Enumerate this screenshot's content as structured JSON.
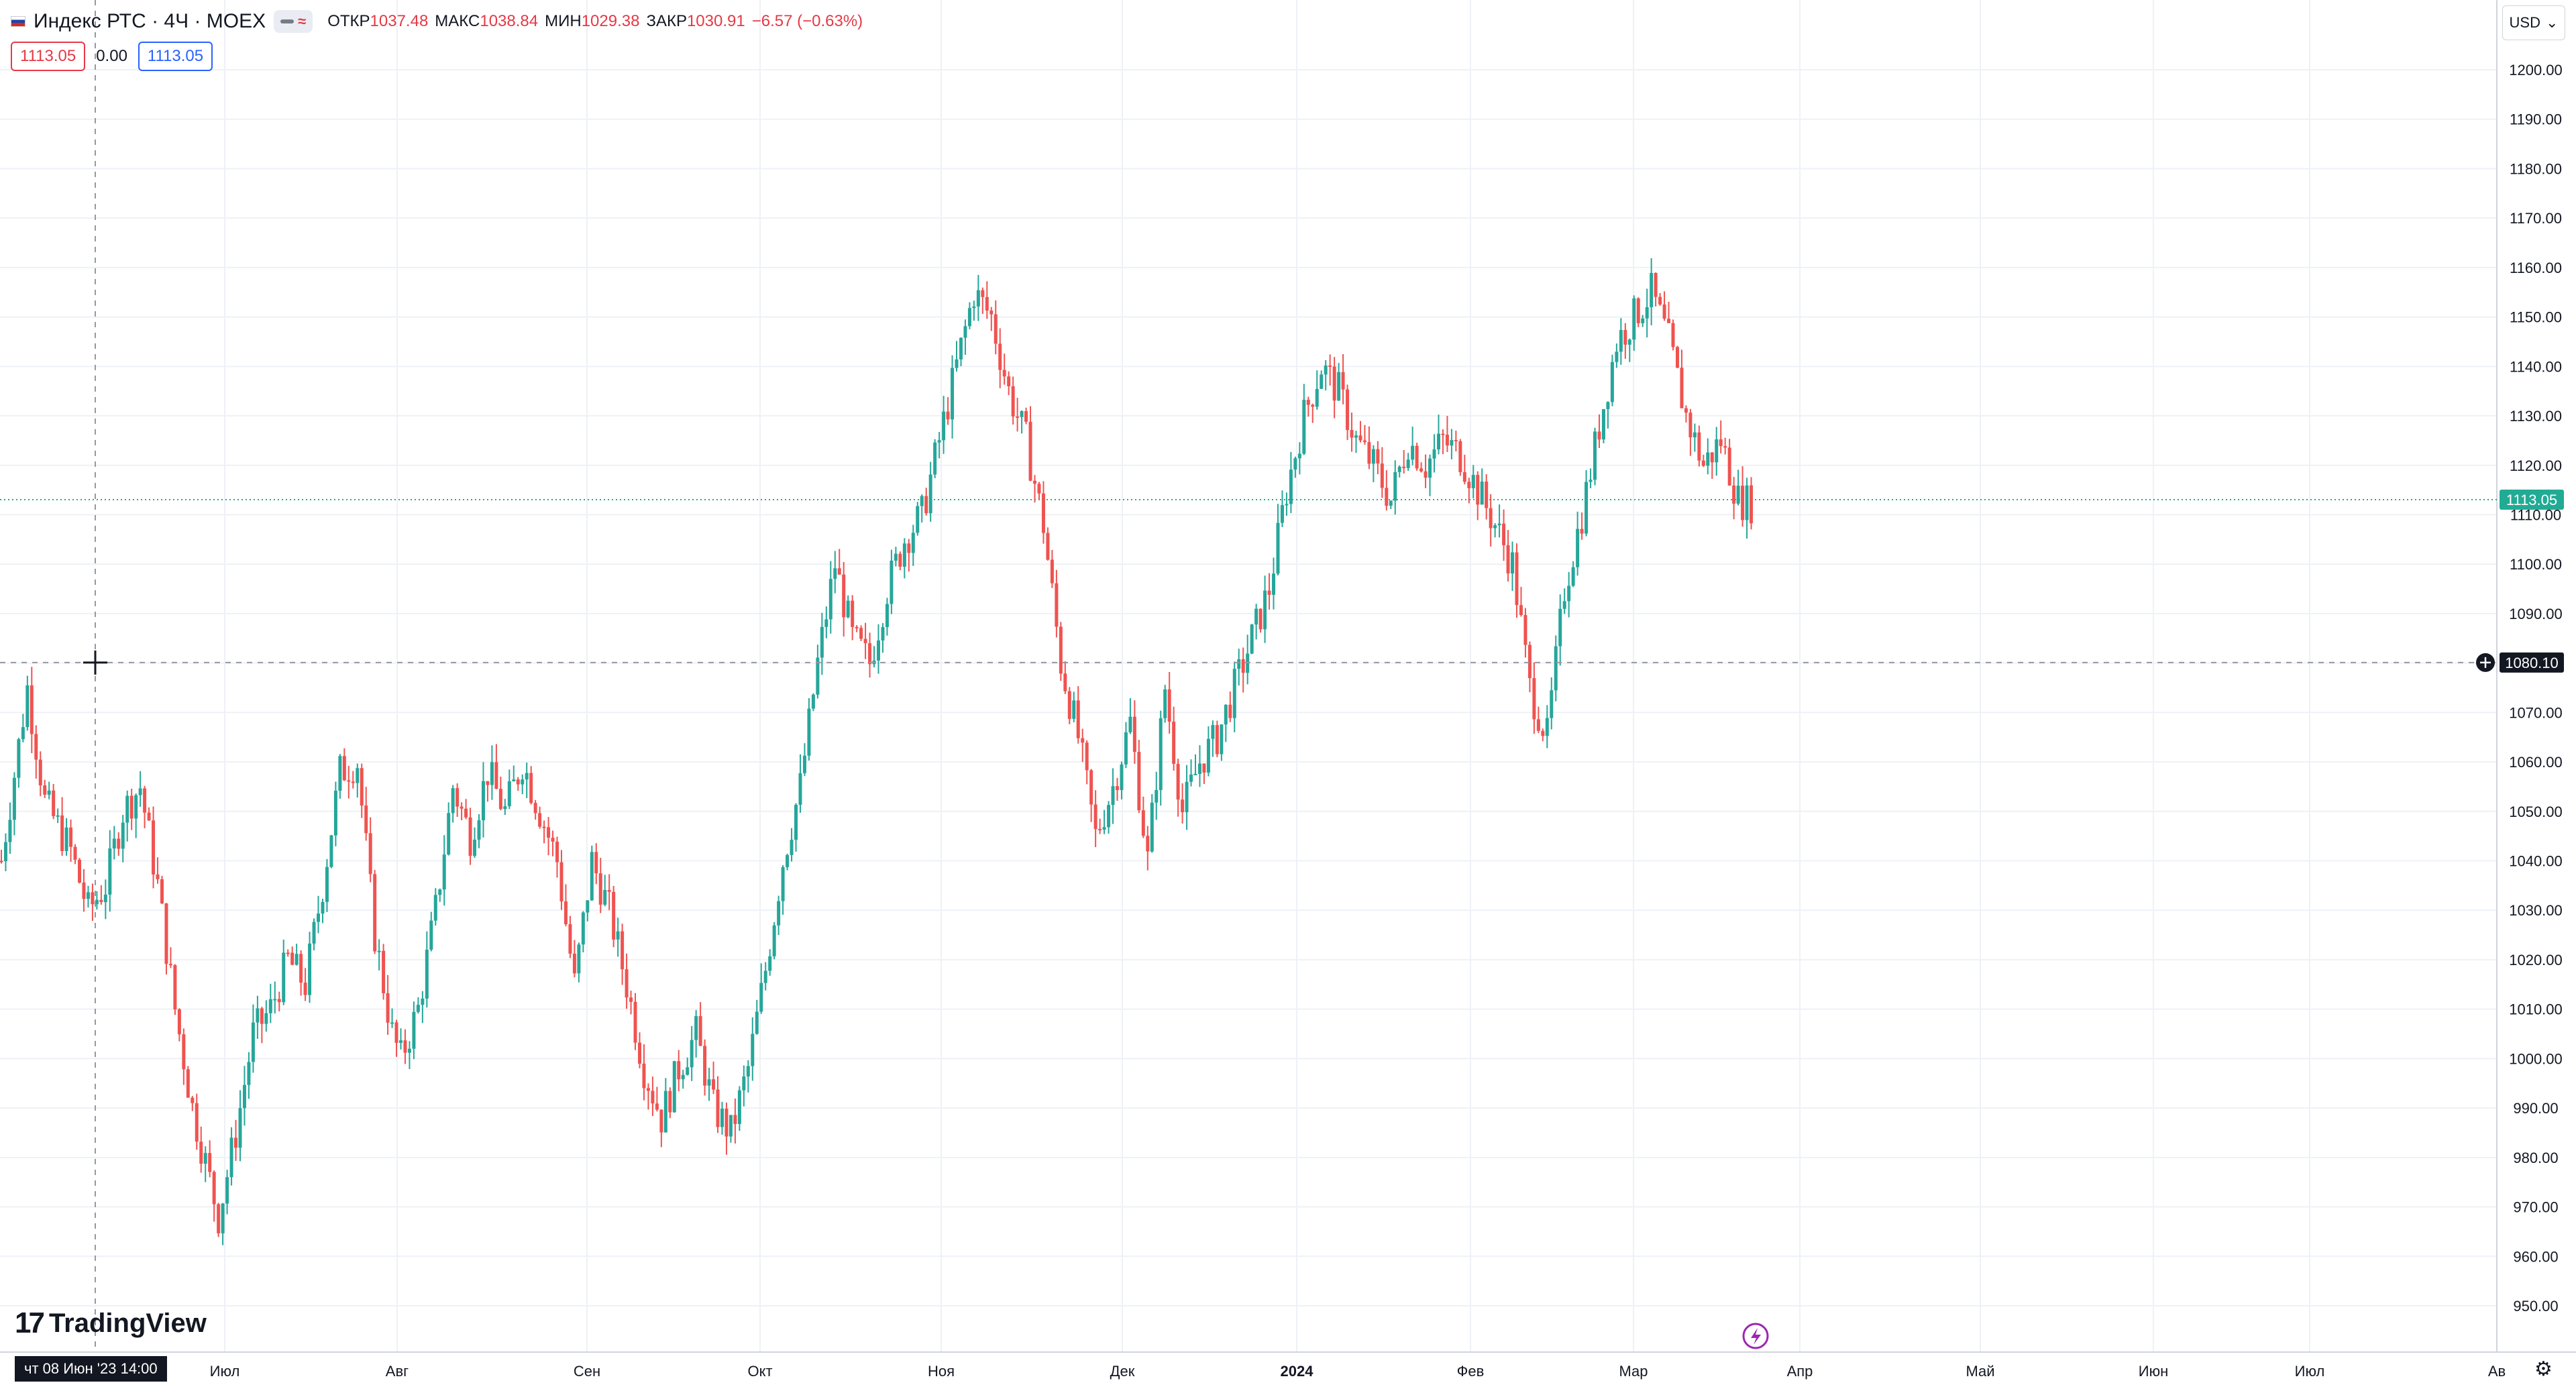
{
  "header": {
    "symbol": "Индекс РТС · 4Ч · MOEX",
    "ohlc": [
      {
        "label": "ОТКР",
        "value": "1037.48"
      },
      {
        "label": "МАКС",
        "value": "1038.84"
      },
      {
        "label": "МИН",
        "value": "1029.38"
      },
      {
        "label": "ЗАКР",
        "value": "1030.91"
      }
    ],
    "change": "−6.57 (−0.63%)",
    "sell_price": "1113.05",
    "spread": "0.00",
    "buy_price": "1113.05"
  },
  "currency": "USD",
  "logo": "TradingView",
  "crosshair": {
    "date_label": "чт 08 Июн '23   14:00",
    "price_label": "1080.10"
  },
  "last_price_label": "1113.05",
  "colors": {
    "up": "#26a69a",
    "down": "#ef5350",
    "last_price_badge": "#22ab94",
    "grid": "#eef1f6"
  },
  "icons": {
    "crosshair": "crosshair-icon",
    "settings": "gear-icon",
    "event": "lightning-icon",
    "add": "plus-circle-icon"
  },
  "chart_data": {
    "type": "candlestick",
    "title": "Индекс РТС · 4Ч · MOEX",
    "xlabel": "",
    "ylabel": "",
    "ylim": [
      945,
      1210
    ],
    "y_ticks": [
      "1200.00",
      "1190.00",
      "1180.00",
      "1170.00",
      "1160.00",
      "1150.00",
      "1140.00",
      "1130.00",
      "1120.00",
      "1110.00",
      "1100.00",
      "1090.00",
      "1080.00",
      "1070.00",
      "1060.00",
      "1050.00",
      "1040.00",
      "1030.00",
      "1020.00",
      "1010.00",
      "1000.00",
      "990.00",
      "980.00",
      "970.00",
      "960.00",
      "950.00"
    ],
    "x_ticks": [
      "Июл",
      "Авг",
      "Сен",
      "Окт",
      "Ноя",
      "Дек",
      "2024",
      "Фев",
      "Мар",
      "Апр",
      "Май",
      "Июн",
      "Июл",
      "Ав"
    ],
    "grid": true,
    "last_price": 1113.05,
    "price_path": [
      [
        0,
        1040
      ],
      [
        6,
        1075
      ],
      [
        10,
        1052
      ],
      [
        16,
        1042
      ],
      [
        20,
        1030
      ],
      [
        24,
        1035
      ],
      [
        28,
        1050
      ],
      [
        32,
        1055
      ],
      [
        36,
        1035
      ],
      [
        40,
        1010
      ],
      [
        44,
        990
      ],
      [
        50,
        968
      ],
      [
        54,
        985
      ],
      [
        58,
        1005
      ],
      [
        62,
        1010
      ],
      [
        66,
        1020
      ],
      [
        70,
        1015
      ],
      [
        74,
        1035
      ],
      [
        78,
        1058
      ],
      [
        82,
        1060
      ],
      [
        86,
        1025
      ],
      [
        90,
        1005
      ],
      [
        92,
        1000
      ],
      [
        96,
        1010
      ],
      [
        100,
        1030
      ],
      [
        104,
        1055
      ],
      [
        108,
        1045
      ],
      [
        112,
        1058
      ],
      [
        116,
        1050
      ],
      [
        120,
        1060
      ],
      [
        124,
        1050
      ],
      [
        128,
        1040
      ],
      [
        132,
        1015
      ],
      [
        136,
        1040
      ],
      [
        140,
        1030
      ],
      [
        144,
        1015
      ],
      [
        148,
        998
      ],
      [
        152,
        988
      ],
      [
        156,
        998
      ],
      [
        160,
        1005
      ],
      [
        164,
        990
      ],
      [
        168,
        985
      ],
      [
        172,
        998
      ],
      [
        176,
        1018
      ],
      [
        180,
        1040
      ],
      [
        184,
        1055
      ],
      [
        188,
        1080
      ],
      [
        192,
        1100
      ],
      [
        196,
        1085
      ],
      [
        200,
        1080
      ],
      [
        204,
        1095
      ],
      [
        208,
        1105
      ],
      [
        212,
        1110
      ],
      [
        216,
        1125
      ],
      [
        220,
        1140
      ],
      [
        224,
        1155
      ],
      [
        228,
        1150
      ],
      [
        232,
        1135
      ],
      [
        236,
        1125
      ],
      [
        240,
        1108
      ],
      [
        244,
        1080
      ],
      [
        248,
        1065
      ],
      [
        252,
        1045
      ],
      [
        256,
        1055
      ],
      [
        260,
        1068
      ],
      [
        264,
        1040
      ],
      [
        268,
        1075
      ],
      [
        272,
        1050
      ],
      [
        276,
        1060
      ],
      [
        280,
        1065
      ],
      [
        284,
        1075
      ],
      [
        288,
        1085
      ],
      [
        292,
        1095
      ],
      [
        296,
        1115
      ],
      [
        300,
        1130
      ],
      [
        304,
        1140
      ],
      [
        308,
        1135
      ],
      [
        312,
        1125
      ],
      [
        316,
        1120
      ],
      [
        320,
        1113
      ],
      [
        324,
        1125
      ],
      [
        328,
        1120
      ],
      [
        332,
        1125
      ],
      [
        336,
        1122
      ],
      [
        340,
        1115
      ],
      [
        344,
        1108
      ],
      [
        348,
        1100
      ],
      [
        352,
        1075
      ],
      [
        356,
        1065
      ],
      [
        360,
        1095
      ],
      [
        364,
        1110
      ],
      [
        368,
        1128
      ],
      [
        372,
        1145
      ],
      [
        376,
        1150
      ],
      [
        380,
        1155
      ],
      [
        384,
        1145
      ],
      [
        388,
        1130
      ],
      [
        392,
        1120
      ],
      [
        396,
        1125
      ],
      [
        400,
        1113
      ],
      [
        404,
        1112
      ]
    ]
  }
}
